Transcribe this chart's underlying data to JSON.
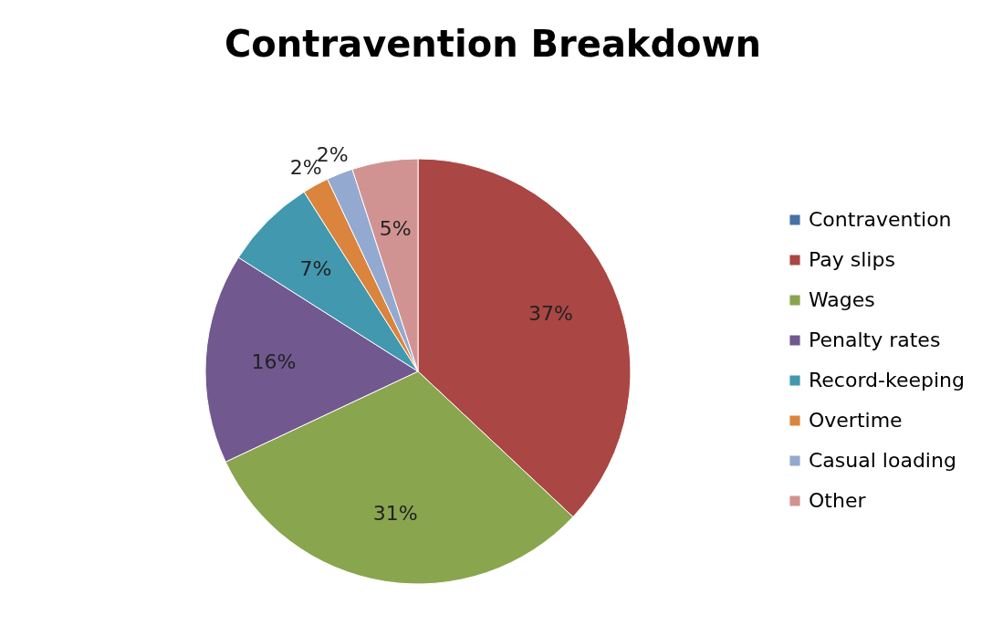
{
  "chart_data": {
    "type": "pie",
    "title": "Contravention Breakdown",
    "categories": [
      "Contravention",
      "Pay slips",
      "Wages",
      "Penalty rates",
      "Record-keeping",
      "Overtime",
      "Casual loading",
      "Other"
    ],
    "values": [
      0,
      37,
      31,
      16,
      7,
      2,
      2,
      5
    ],
    "value_labels": [
      null,
      "37%",
      "31%",
      "16%",
      "7%",
      "2%",
      "2%",
      "5%"
    ],
    "colors": [
      "#4572a7",
      "#aa4643",
      "#89a54e",
      "#71588f",
      "#4198af",
      "#db843d",
      "#93a9cf",
      "#d19392"
    ],
    "legend": "right"
  }
}
